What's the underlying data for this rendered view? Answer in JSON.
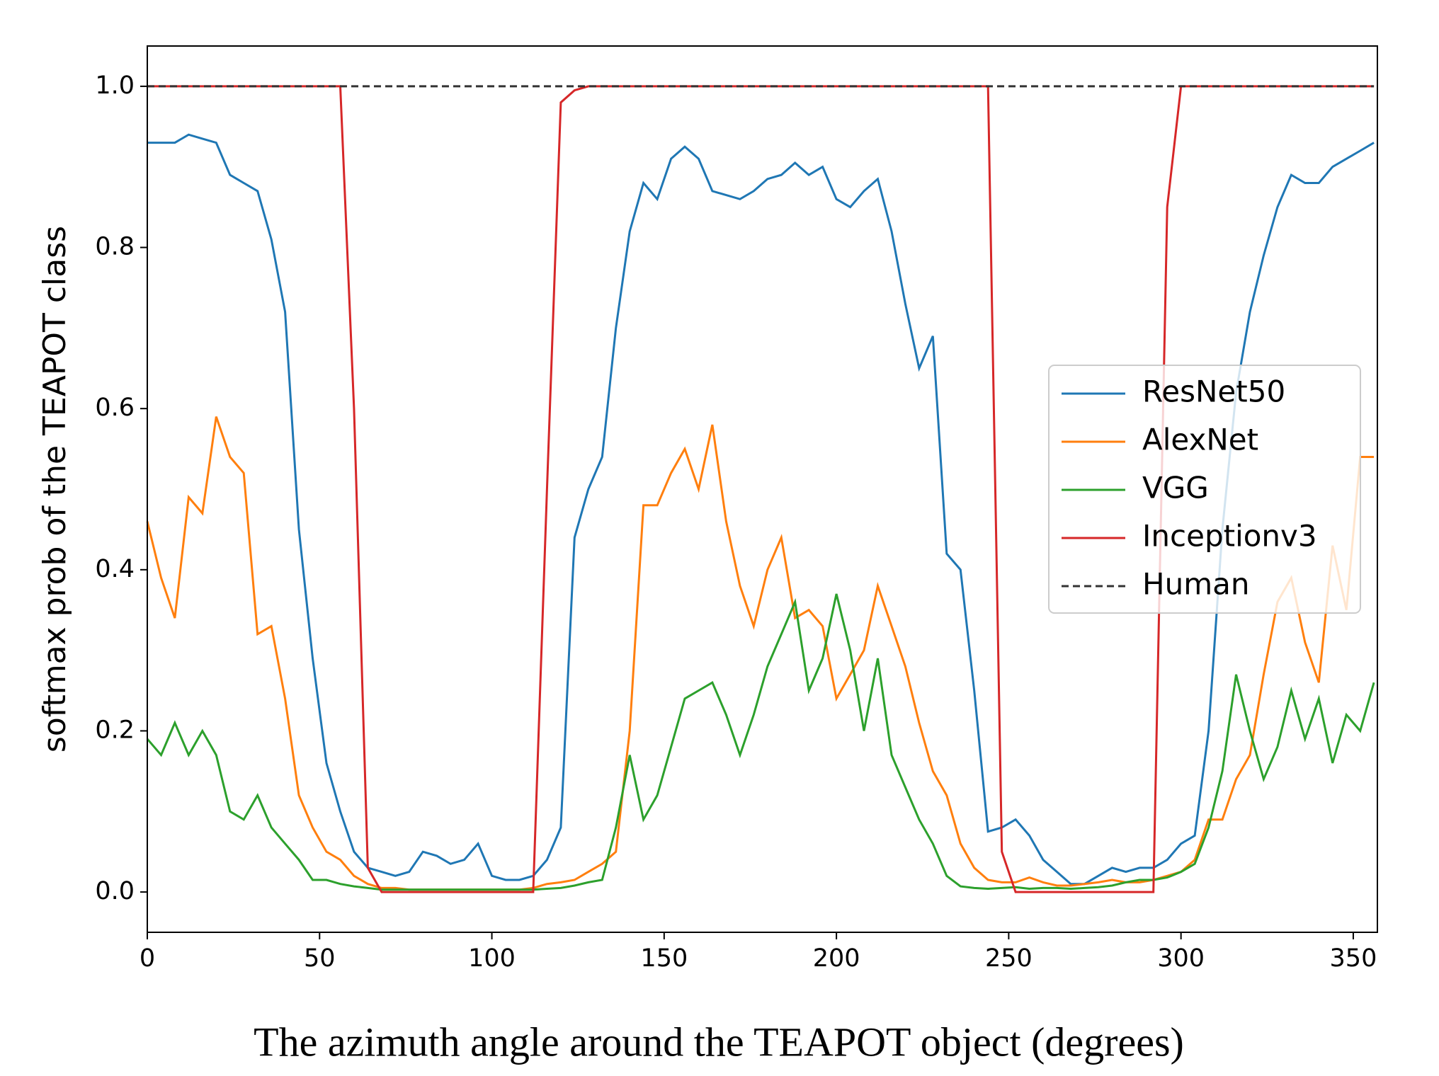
{
  "chart_data": {
    "type": "line",
    "xlabel": "The azimuth angle around the TEAPOT object (degrees)",
    "ylabel": "softmax prob of the TEAPOT class",
    "x": [
      0,
      4,
      8,
      12,
      16,
      20,
      24,
      28,
      32,
      36,
      40,
      44,
      48,
      52,
      56,
      60,
      64,
      68,
      72,
      76,
      80,
      84,
      88,
      92,
      96,
      100,
      104,
      108,
      112,
      116,
      120,
      124,
      128,
      132,
      136,
      140,
      144,
      148,
      152,
      156,
      160,
      164,
      168,
      172,
      176,
      180,
      184,
      188,
      192,
      196,
      200,
      204,
      208,
      212,
      216,
      220,
      224,
      228,
      232,
      236,
      240,
      244,
      248,
      252,
      256,
      260,
      264,
      268,
      272,
      276,
      280,
      284,
      288,
      292,
      296,
      300,
      304,
      308,
      312,
      316,
      320,
      324,
      328,
      332,
      336,
      340,
      344,
      348,
      352,
      356
    ],
    "series": [
      {
        "name": "ResNet50",
        "color": "#1f77b4",
        "dashed": false,
        "values": [
          0.93,
          0.93,
          0.93,
          0.94,
          0.935,
          0.93,
          0.89,
          0.88,
          0.87,
          0.81,
          0.72,
          0.45,
          0.29,
          0.16,
          0.1,
          0.05,
          0.03,
          0.025,
          0.02,
          0.025,
          0.05,
          0.045,
          0.035,
          0.04,
          0.06,
          0.02,
          0.015,
          0.015,
          0.02,
          0.04,
          0.08,
          0.44,
          0.5,
          0.54,
          0.7,
          0.82,
          0.88,
          0.86,
          0.91,
          0.925,
          0.91,
          0.87,
          0.865,
          0.86,
          0.87,
          0.885,
          0.89,
          0.905,
          0.89,
          0.9,
          0.86,
          0.85,
          0.87,
          0.885,
          0.82,
          0.73,
          0.65,
          0.69,
          0.42,
          0.4,
          0.25,
          0.075,
          0.08,
          0.09,
          0.07,
          0.04,
          0.025,
          0.01,
          0.01,
          0.02,
          0.03,
          0.025,
          0.03,
          0.03,
          0.04,
          0.06,
          0.07,
          0.2,
          0.45,
          0.62,
          0.72,
          0.79,
          0.85,
          0.89,
          0.88,
          0.88,
          0.9,
          0.91,
          0.92,
          0.93
        ]
      },
      {
        "name": "AlexNet",
        "color": "#ff7f0e",
        "dashed": false,
        "values": [
          0.46,
          0.39,
          0.34,
          0.49,
          0.47,
          0.59,
          0.54,
          0.52,
          0.32,
          0.33,
          0.24,
          0.12,
          0.08,
          0.05,
          0.04,
          0.02,
          0.01,
          0.005,
          0.005,
          0.003,
          0.003,
          0.003,
          0.003,
          0.003,
          0.003,
          0.003,
          0.003,
          0.003,
          0.005,
          0.01,
          0.012,
          0.015,
          0.025,
          0.035,
          0.05,
          0.2,
          0.48,
          0.48,
          0.52,
          0.55,
          0.5,
          0.58,
          0.46,
          0.38,
          0.33,
          0.4,
          0.44,
          0.34,
          0.35,
          0.33,
          0.24,
          0.27,
          0.3,
          0.38,
          0.33,
          0.28,
          0.21,
          0.15,
          0.12,
          0.06,
          0.03,
          0.015,
          0.012,
          0.012,
          0.018,
          0.012,
          0.008,
          0.008,
          0.01,
          0.012,
          0.015,
          0.012,
          0.012,
          0.015,
          0.02,
          0.025,
          0.04,
          0.09,
          0.09,
          0.14,
          0.17,
          0.27,
          0.36,
          0.39,
          0.31,
          0.26,
          0.43,
          0.35,
          0.54,
          0.54
        ]
      },
      {
        "name": "VGG",
        "color": "#2ca02c",
        "dashed": false,
        "values": [
          0.19,
          0.17,
          0.21,
          0.17,
          0.2,
          0.17,
          0.1,
          0.09,
          0.12,
          0.08,
          0.06,
          0.04,
          0.015,
          0.015,
          0.01,
          0.007,
          0.005,
          0.003,
          0.003,
          0.003,
          0.003,
          0.003,
          0.003,
          0.003,
          0.003,
          0.003,
          0.003,
          0.003,
          0.003,
          0.004,
          0.005,
          0.008,
          0.012,
          0.015,
          0.08,
          0.17,
          0.09,
          0.12,
          0.18,
          0.24,
          0.25,
          0.26,
          0.22,
          0.17,
          0.22,
          0.28,
          0.32,
          0.36,
          0.25,
          0.29,
          0.37,
          0.3,
          0.2,
          0.29,
          0.17,
          0.13,
          0.09,
          0.06,
          0.02,
          0.007,
          0.005,
          0.004,
          0.005,
          0.006,
          0.004,
          0.005,
          0.005,
          0.004,
          0.005,
          0.006,
          0.008,
          0.012,
          0.015,
          0.015,
          0.018,
          0.025,
          0.035,
          0.08,
          0.15,
          0.27,
          0.2,
          0.14,
          0.18,
          0.25,
          0.19,
          0.24,
          0.16,
          0.22,
          0.2,
          0.26
        ]
      },
      {
        "name": "Inceptionv3",
        "color": "#d62728",
        "dashed": false,
        "values": [
          1,
          1,
          1,
          1,
          1,
          1,
          1,
          1,
          1,
          1,
          1,
          1,
          1,
          1,
          1,
          0.6,
          0.03,
          0,
          0,
          0,
          0,
          0,
          0,
          0,
          0,
          0,
          0,
          0,
          0,
          0.5,
          0.98,
          0.995,
          1,
          1,
          1,
          1,
          1,
          1,
          1,
          1,
          1,
          1,
          1,
          1,
          1,
          1,
          1,
          1,
          1,
          1,
          1,
          1,
          1,
          1,
          1,
          1,
          1,
          1,
          1,
          1,
          1,
          1,
          0.05,
          0,
          0,
          0,
          0,
          0,
          0,
          0,
          0,
          0,
          0,
          0,
          0.85,
          1,
          1,
          1,
          1,
          1,
          1,
          1,
          1,
          1,
          1,
          1,
          1,
          1,
          1,
          1
        ]
      },
      {
        "name": "Human",
        "color": "#333333",
        "dashed": true,
        "values": [
          1,
          1,
          1,
          1,
          1,
          1,
          1,
          1,
          1,
          1,
          1,
          1,
          1,
          1,
          1,
          1,
          1,
          1,
          1,
          1,
          1,
          1,
          1,
          1,
          1,
          1,
          1,
          1,
          1,
          1,
          1,
          1,
          1,
          1,
          1,
          1,
          1,
          1,
          1,
          1,
          1,
          1,
          1,
          1,
          1,
          1,
          1,
          1,
          1,
          1,
          1,
          1,
          1,
          1,
          1,
          1,
          1,
          1,
          1,
          1,
          1,
          1,
          1,
          1,
          1,
          1,
          1,
          1,
          1,
          1,
          1,
          1,
          1,
          1,
          1,
          1,
          1,
          1,
          1,
          1,
          1,
          1,
          1,
          1,
          1,
          1,
          1,
          1,
          1,
          1
        ]
      }
    ],
    "xlim": [
      0,
      357
    ],
    "xticks": [
      0,
      50,
      100,
      150,
      200,
      250,
      300,
      350
    ],
    "ylim": [
      -0.05,
      1.05
    ],
    "yticks": [
      {
        "value": 0,
        "label": "0.0"
      },
      0.2,
      0.4,
      0.6,
      0.8,
      {
        "value": 1,
        "label": "1.0"
      }
    ],
    "legend": "center right"
  }
}
